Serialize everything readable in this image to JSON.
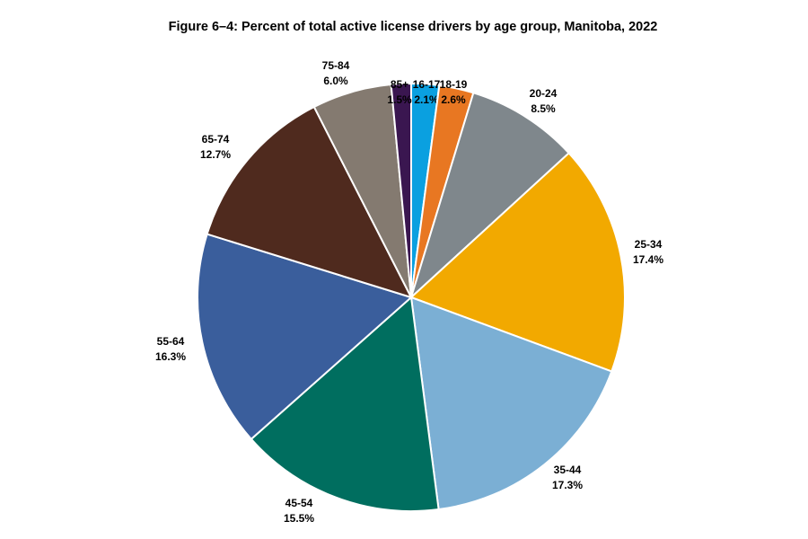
{
  "chart_data": {
    "type": "pie",
    "title": "Figure 6–4: Percent of total active license drivers by age group, Manitoba, 2022",
    "start": "12 o'clock, clockwise",
    "slices": [
      {
        "label": "16-17",
        "value": 2.1,
        "display": "2.1%",
        "color": "#0aa0e0"
      },
      {
        "label": "18-19",
        "value": 2.6,
        "display": "2.6%",
        "color": "#e87722"
      },
      {
        "label": "20-24",
        "value": 8.5,
        "display": "8.5%",
        "color": "#7f878c"
      },
      {
        "label": "25-34",
        "value": 17.4,
        "display": "17.4%",
        "color": "#f2a900"
      },
      {
        "label": "35-44",
        "value": 17.3,
        "display": "17.3%",
        "color": "#7bafd4"
      },
      {
        "label": "45-54",
        "value": 15.5,
        "display": "15.5%",
        "color": "#006e5f"
      },
      {
        "label": "55-64",
        "value": 16.3,
        "display": "16.3%",
        "color": "#3a5e9c"
      },
      {
        "label": "65-74",
        "value": 12.7,
        "display": "12.7%",
        "color": "#4f2a1e"
      },
      {
        "label": "75-84",
        "value": 6.0,
        "display": "6.0%",
        "color": "#847a70"
      },
      {
        "label": "85+",
        "value": 1.5,
        "display": "1.5%",
        "color": "#3a1650"
      }
    ],
    "legend": "none (data labels)"
  }
}
